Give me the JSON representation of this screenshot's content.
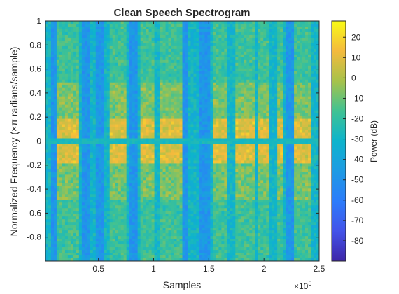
{
  "chart_data": {
    "type": "heatmap",
    "title": "Clean Speech Spectrogram",
    "xlabel": "Samples",
    "ylabel": "Normalized Frequency (×π radians/sample)",
    "x_exponent_label": "×10",
    "x_exponent_power": "5",
    "xlim": [
      0.02,
      2.5
    ],
    "ylim": [
      -1,
      1
    ],
    "xticks": [
      {
        "value": 0.5,
        "label": "0.5"
      },
      {
        "value": 1,
        "label": "1"
      },
      {
        "value": 1.5,
        "label": "1.5"
      },
      {
        "value": 2,
        "label": "2"
      },
      {
        "value": 2.5,
        "label": "2.5"
      }
    ],
    "yticks": [
      {
        "value": 1,
        "label": "1"
      },
      {
        "value": 0.8,
        "label": "0.8"
      },
      {
        "value": 0.6,
        "label": "0.6"
      },
      {
        "value": 0.4,
        "label": "0.4"
      },
      {
        "value": 0.2,
        "label": "0.2"
      },
      {
        "value": 0,
        "label": "0"
      },
      {
        "value": -0.2,
        "label": "-0.2"
      },
      {
        "value": -0.4,
        "label": "-0.4"
      },
      {
        "value": -0.6,
        "label": "-0.6"
      },
      {
        "value": -0.8,
        "label": "-0.8"
      }
    ],
    "colorbar": {
      "label": "Power (dB)",
      "range": [
        -90,
        28
      ],
      "colormap": "parula",
      "ticks": [
        {
          "value": 20,
          "label": "20"
        },
        {
          "value": 10,
          "label": "10"
        },
        {
          "value": 0,
          "label": "0"
        },
        {
          "value": -10,
          "label": "-10"
        },
        {
          "value": -20,
          "label": "-20"
        },
        {
          "value": -30,
          "label": "-30"
        },
        {
          "value": -40,
          "label": "-40"
        },
        {
          "value": -50,
          "label": "-50"
        },
        {
          "value": -60,
          "label": "-60"
        },
        {
          "value": -70,
          "label": "-70"
        },
        {
          "value": -80,
          "label": "-80"
        }
      ]
    },
    "quiet_segments": [
      [
        0.08,
        0.12
      ],
      [
        0.36,
        0.43
      ],
      [
        0.48,
        0.55
      ],
      [
        0.78,
        0.86
      ],
      [
        1.27,
        1.31
      ],
      [
        1.42,
        1.52
      ],
      [
        2.2,
        2.27
      ]
    ],
    "voiced_segments": [
      [
        0.13,
        0.33
      ],
      [
        0.6,
        0.76
      ],
      [
        0.88,
        1.0
      ],
      [
        1.05,
        1.25
      ],
      [
        1.55,
        1.66
      ],
      [
        1.74,
        1.93
      ],
      [
        1.95,
        2.05
      ],
      [
        2.12,
        2.18
      ],
      [
        2.28,
        2.42
      ]
    ],
    "colors": {
      "low": "#3E26A8",
      "mid": "#1AB2D5",
      "high": "#F9FB15",
      "axis": "#262626"
    }
  }
}
